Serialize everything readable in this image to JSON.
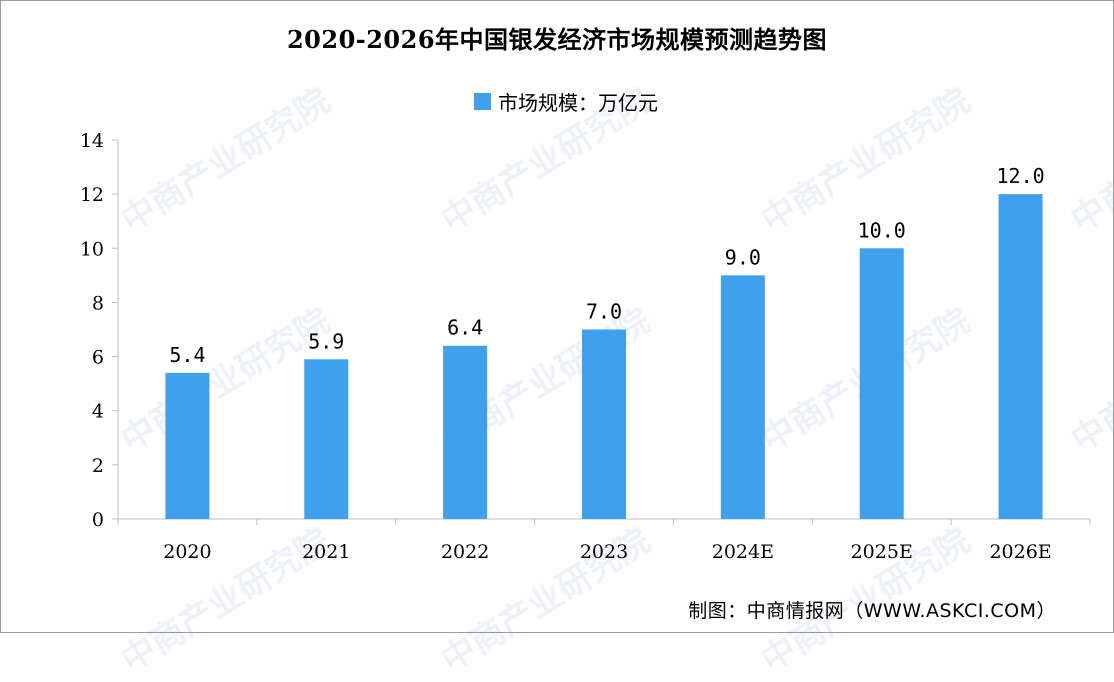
{
  "chart_data": {
    "type": "bar",
    "title": "2020-2026年中国银发经济市场规模预测趋势图",
    "categories": [
      "2020",
      "2021",
      "2022",
      "2023",
      "2024E",
      "2025E",
      "2026E"
    ],
    "series": [
      {
        "name": "市场规模：万亿元",
        "values": [
          5.4,
          5.9,
          6.4,
          7.0,
          9.0,
          10.0,
          12.0
        ],
        "color": "#3fa0ee"
      }
    ],
    "data_labels": [
      "5.4",
      "5.9",
      "6.4",
      "7.0",
      "9.0",
      "10.0",
      "12.0"
    ],
    "ylim": [
      0,
      14
    ],
    "yticks": [
      0,
      2,
      4,
      6,
      8,
      10,
      12,
      14
    ],
    "grid": false,
    "legend_position": "top-center"
  },
  "source": "制图：中商情报网（WWW.ASKCI.COM）",
  "watermark": "中商产业研究院",
  "colors": {
    "bar": "#3fa0ee",
    "axis": "#bfbfbf"
  }
}
